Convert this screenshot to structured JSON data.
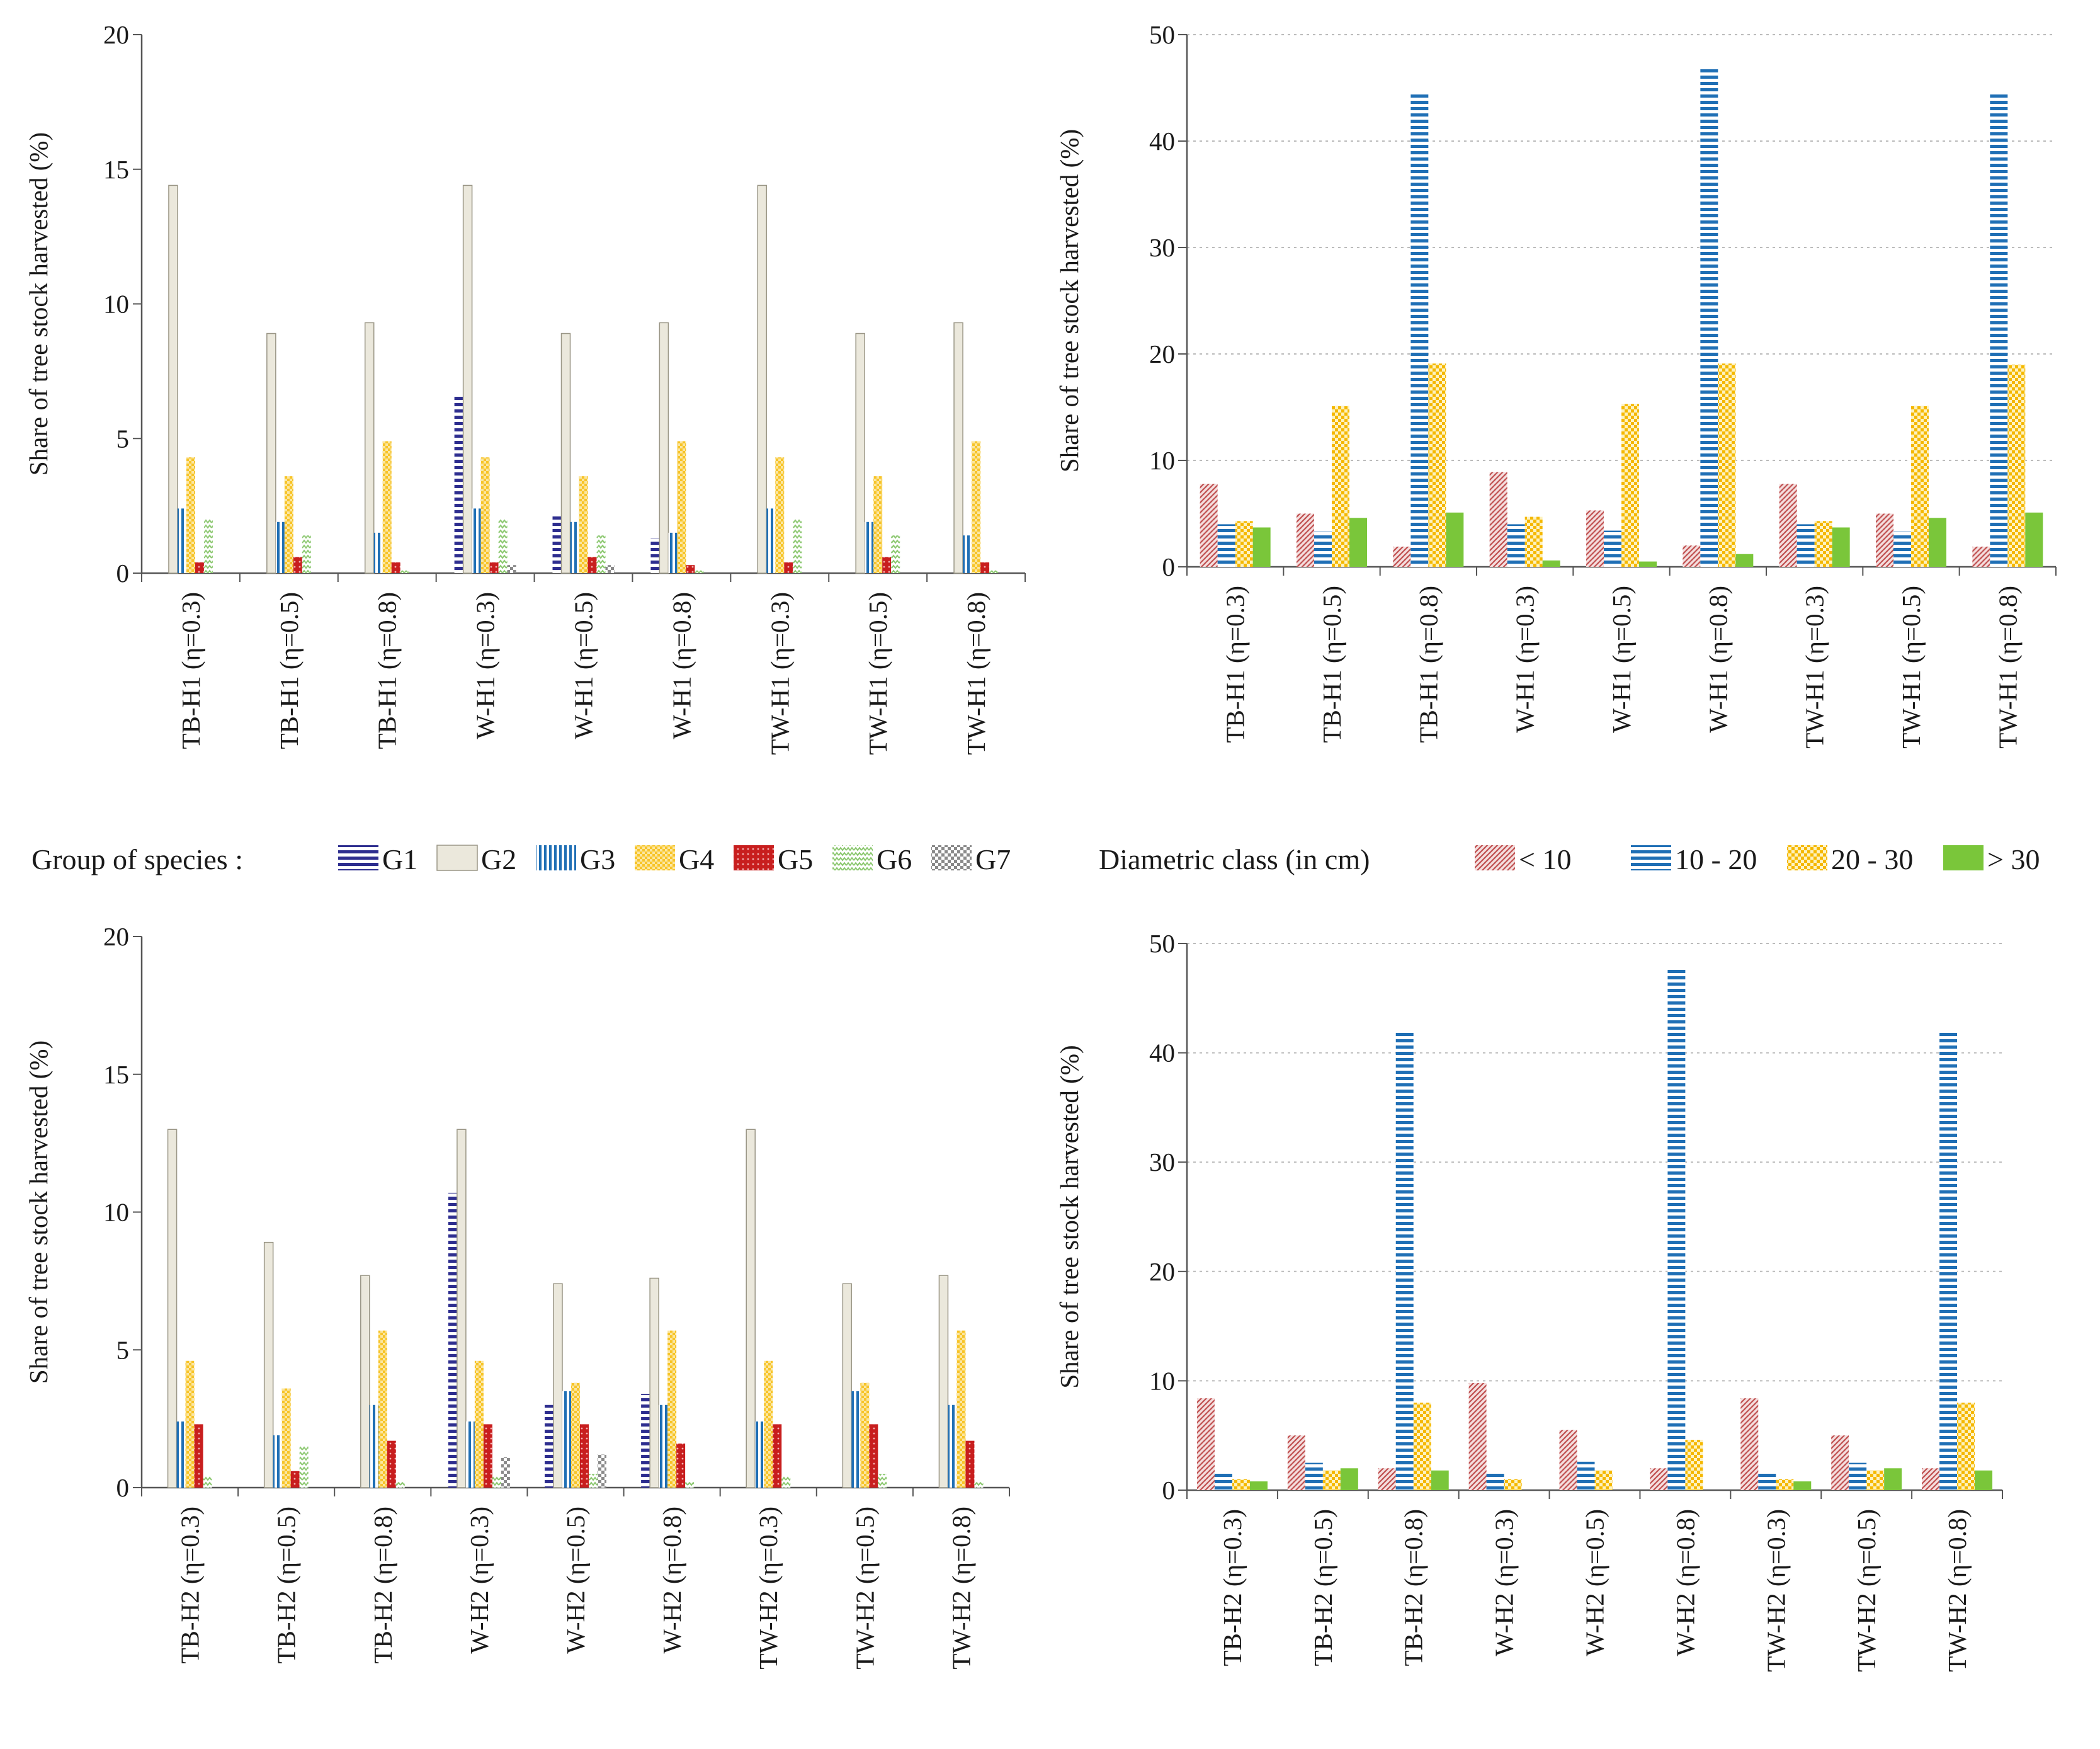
{
  "colors": {
    "G1": "#2e2e8f",
    "G2": "#ebe8dc",
    "G3": "#1f6fb5",
    "G4": "#f7c428",
    "G5": "#c81e1e",
    "G6": "#8cc870",
    "G7": "#8a8a8a",
    "d_lt10": "#c05050",
    "d_10_20": "#1f6fb5",
    "d_20_30": "#f5b800",
    "d_gt30": "#7ac63a",
    "axis": "#555555",
    "grid": "#bbbbbb"
  },
  "legends": {
    "species": {
      "title": "Group of species :",
      "items": [
        {
          "key": "G1",
          "label": "G1"
        },
        {
          "key": "G2",
          "label": "G2"
        },
        {
          "key": "G3",
          "label": "G3"
        },
        {
          "key": "G4",
          "label": "G4"
        },
        {
          "key": "G5",
          "label": "G5"
        },
        {
          "key": "G6",
          "label": "G6"
        },
        {
          "key": "G7",
          "label": "G7"
        }
      ]
    },
    "diameter": {
      "title": "Diametric class (in cm)",
      "items": [
        {
          "key": "d_lt10",
          "label": "< 10"
        },
        {
          "key": "d_10_20",
          "label": "10 - 20"
        },
        {
          "key": "d_20_30",
          "label": "20 - 30"
        },
        {
          "key": "d_gt30",
          "label": "> 30"
        }
      ]
    }
  },
  "chart_data": [
    {
      "id": "species-h1",
      "type": "bar",
      "ylabel": "Share of tree stock  harvested (%)",
      "ylim": [
        0,
        20
      ],
      "yticks": [
        0,
        5,
        10,
        15,
        20
      ],
      "grid": false,
      "categories": [
        "TB-H1 (η=0.3)",
        "TB-H1 (η=0.5)",
        "TB-H1 (η=0.8)",
        "W-H1 (η=0.3)",
        "W-H1 (η=0.5)",
        "W-H1 (η=0.8)",
        "TW-H1 (η=0.3)",
        "TW-H1 (η=0.5)",
        "TW-H1 (η=0.8)"
      ],
      "series": [
        {
          "name": "G1",
          "values": [
            0,
            0,
            0,
            6.6,
            2.2,
            1.3,
            0,
            0,
            0
          ]
        },
        {
          "name": "G2",
          "values": [
            14.4,
            8.9,
            9.3,
            14.4,
            8.9,
            9.3,
            14.4,
            8.9,
            9.3
          ]
        },
        {
          "name": "G3",
          "values": [
            2.4,
            1.9,
            1.5,
            2.4,
            1.9,
            1.5,
            2.4,
            1.9,
            1.4
          ]
        },
        {
          "name": "G4",
          "values": [
            4.3,
            3.6,
            4.9,
            4.3,
            3.6,
            4.9,
            4.3,
            3.6,
            4.9
          ]
        },
        {
          "name": "G5",
          "values": [
            0.4,
            0.6,
            0.4,
            0.4,
            0.6,
            0.3,
            0.4,
            0.6,
            0.4
          ]
        },
        {
          "name": "G6",
          "values": [
            2.0,
            1.4,
            0.1,
            2.0,
            1.4,
            0.1,
            2.0,
            1.4,
            0.1
          ]
        },
        {
          "name": "G7",
          "values": [
            0,
            0,
            0,
            0.3,
            0.3,
            0,
            0,
            0,
            0
          ]
        }
      ]
    },
    {
      "id": "diameter-h1",
      "type": "bar",
      "ylabel": "Share of tree stock harvested (%)",
      "ylim": [
        0,
        50
      ],
      "yticks": [
        0,
        10,
        20,
        30,
        40,
        50
      ],
      "grid": true,
      "categories": [
        "TB-H1 (η=0.3)",
        "TB-H1 (η=0.5)",
        "TB-H1 (η=0.8)",
        "W-H1 (η=0.3)",
        "W-H1 (η=0.5)",
        "W-H1 (η=0.8)",
        "TW-H1 (η=0.3)",
        "TW-H1 (η=0.5)",
        "TW-H1 (η=0.8)"
      ],
      "series": [
        {
          "name": "< 10",
          "key": "d_lt10",
          "values": [
            7.8,
            5.0,
            1.9,
            8.9,
            5.3,
            2.0,
            7.8,
            5.0,
            1.9
          ]
        },
        {
          "name": "10 - 20",
          "key": "d_10_20",
          "values": [
            4.0,
            3.3,
            44.6,
            4.0,
            3.4,
            46.9,
            4.0,
            3.3,
            44.6
          ]
        },
        {
          "name": "20 - 30",
          "key": "d_20_30",
          "values": [
            4.3,
            15.1,
            19.1,
            4.7,
            15.3,
            19.1,
            4.3,
            15.1,
            19.0
          ]
        },
        {
          "name": "> 30",
          "key": "d_gt30",
          "values": [
            3.7,
            4.6,
            5.1,
            0.6,
            0.5,
            1.2,
            3.7,
            4.6,
            5.1
          ]
        }
      ]
    },
    {
      "id": "species-h2",
      "type": "bar",
      "ylabel": "Share of tree stock harvested (%)",
      "ylim": [
        0,
        20
      ],
      "yticks": [
        0,
        5,
        10,
        15,
        20
      ],
      "grid": false,
      "categories": [
        "TB-H2 (η=0.3)",
        "TB-H2 (η=0.5)",
        "TB-H2 (η=0.8)",
        "W-H2 (η=0.3)",
        "W-H2 (η=0.5)",
        "W-H2 (η=0.8)",
        "TW-H2 (η=0.3)",
        "TW-H2 (η=0.5)",
        "TW-H2 (η=0.8)"
      ],
      "series": [
        {
          "name": "G1",
          "values": [
            0,
            0,
            0,
            10.7,
            3.0,
            3.4,
            0,
            0,
            0
          ]
        },
        {
          "name": "G2",
          "values": [
            13.0,
            8.9,
            7.7,
            13.0,
            7.4,
            7.6,
            13.0,
            7.4,
            7.7
          ]
        },
        {
          "name": "G3",
          "values": [
            2.4,
            1.9,
            3.0,
            2.4,
            3.5,
            3.0,
            2.4,
            3.5,
            3.0
          ]
        },
        {
          "name": "G4",
          "values": [
            4.6,
            3.6,
            5.7,
            4.6,
            3.8,
            5.7,
            4.6,
            3.8,
            5.7
          ]
        },
        {
          "name": "G5",
          "values": [
            2.3,
            0.6,
            1.7,
            2.3,
            2.3,
            1.6,
            2.3,
            2.3,
            1.7
          ]
        },
        {
          "name": "G6",
          "values": [
            0.4,
            1.5,
            0.2,
            0.4,
            0.5,
            0.2,
            0.4,
            0.5,
            0.2
          ]
        },
        {
          "name": "G7",
          "values": [
            0,
            0,
            0,
            1.1,
            1.2,
            0,
            0,
            0,
            0
          ]
        }
      ]
    },
    {
      "id": "diameter-h2",
      "type": "bar",
      "ylabel": "Share of tree stock harvested (%)",
      "ylim": [
        0,
        50
      ],
      "yticks": [
        0,
        10,
        20,
        30,
        40,
        50
      ],
      "grid": true,
      "categories": [
        "TB-H2 (η=0.3)",
        "TB-H2 (η=0.5)",
        "TB-H2 (η=0.8)",
        "W-H2 (η=0.3)",
        "W-H2 (η=0.5)",
        "W-H2 (η=0.8)",
        "TW-H2 (η=0.3)",
        "TW-H2 (η=0.5)",
        "TW-H2 (η=0.8)"
      ],
      "series": [
        {
          "name": "< 10",
          "key": "d_lt10",
          "values": [
            8.4,
            5.0,
            2.0,
            9.8,
            5.5,
            2.0,
            8.4,
            5.0,
            2.0
          ]
        },
        {
          "name": "10 - 20",
          "key": "d_10_20",
          "values": [
            1.5,
            2.5,
            42.0,
            1.5,
            2.6,
            47.7,
            1.5,
            2.5,
            42.0
          ]
        },
        {
          "name": "20 - 30",
          "key": "d_20_30",
          "values": [
            1.0,
            1.8,
            8.0,
            1.0,
            1.8,
            4.6,
            1.0,
            1.8,
            8.0
          ]
        },
        {
          "name": "> 30",
          "key": "d_gt30",
          "values": [
            0.8,
            2.0,
            1.8,
            0,
            0,
            0,
            0.8,
            2.0,
            1.8
          ]
        }
      ]
    }
  ]
}
